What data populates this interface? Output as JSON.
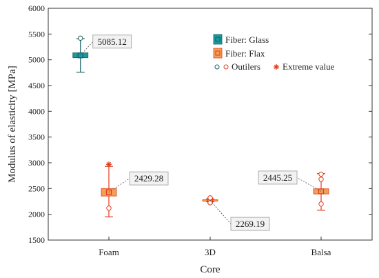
{
  "chart_data": {
    "type": "box",
    "xlabel": "Core",
    "ylabel": "Modulus of elasticity [MPa]",
    "ylim": [
      1500,
      6000
    ],
    "yticks": [
      1500,
      2000,
      2500,
      3000,
      3500,
      4000,
      4500,
      5000,
      5500,
      6000
    ],
    "categories": [
      "Foam",
      "3D",
      "Balsa"
    ],
    "legend": {
      "placement": "top-right",
      "items": [
        {
          "label": "Fiber: Glass",
          "kind": "box",
          "color": "#1a9aa0",
          "edge": "#135f63"
        },
        {
          "label": "Fiber: Flax",
          "kind": "box",
          "color": "#f2a055",
          "edge": "#e23b1a"
        }
      ],
      "markers": [
        {
          "label": "Outilers",
          "kind": "circle"
        },
        {
          "label": "Extreme value",
          "kind": "star"
        }
      ]
    },
    "boxes": [
      {
        "series": "Fiber: Glass",
        "category": "Foam",
        "offset": -0.55,
        "mean": 5085.12,
        "label": "5085.12",
        "q1": 5040,
        "q3": 5135,
        "whisker_low": 4760,
        "whisker_high": 5410,
        "outliers": [
          5420
        ],
        "extremes": [],
        "color": "#1a9aa0",
        "edge": "#135f63"
      },
      {
        "series": "Fiber: Flax",
        "category": "Foam",
        "offset": 0.0,
        "mean": 2429.28,
        "label": "2429.28",
        "q1": 2355,
        "q3": 2500,
        "whisker_low": 1950,
        "whisker_high": 2930,
        "outliers": [
          2120
        ],
        "extremes": [
          2970
        ],
        "color": "#f2a055",
        "edge": "#e23b1a"
      },
      {
        "series": "Fiber: Flax",
        "category": "3D",
        "offset": 0.0,
        "mean": 2269.19,
        "label": "2269.19",
        "q1": 2260,
        "q3": 2282,
        "whisker_low": 2245,
        "whisker_high": 2300,
        "outliers": [
          2225,
          2320
        ],
        "extremes": [],
        "color": "#f2a055",
        "edge": "#e23b1a"
      },
      {
        "series": "Fiber: Flax",
        "category": "Balsa",
        "offset": 0.0,
        "mean": 2445.25,
        "label": "2445.25",
        "q1": 2395,
        "q3": 2495,
        "whisker_low": 2080,
        "whisker_high": 2790,
        "outliers": [
          2200,
          2680,
          2780
        ],
        "extremes": [],
        "color": "#f2a055",
        "edge": "#e23b1a"
      }
    ]
  }
}
